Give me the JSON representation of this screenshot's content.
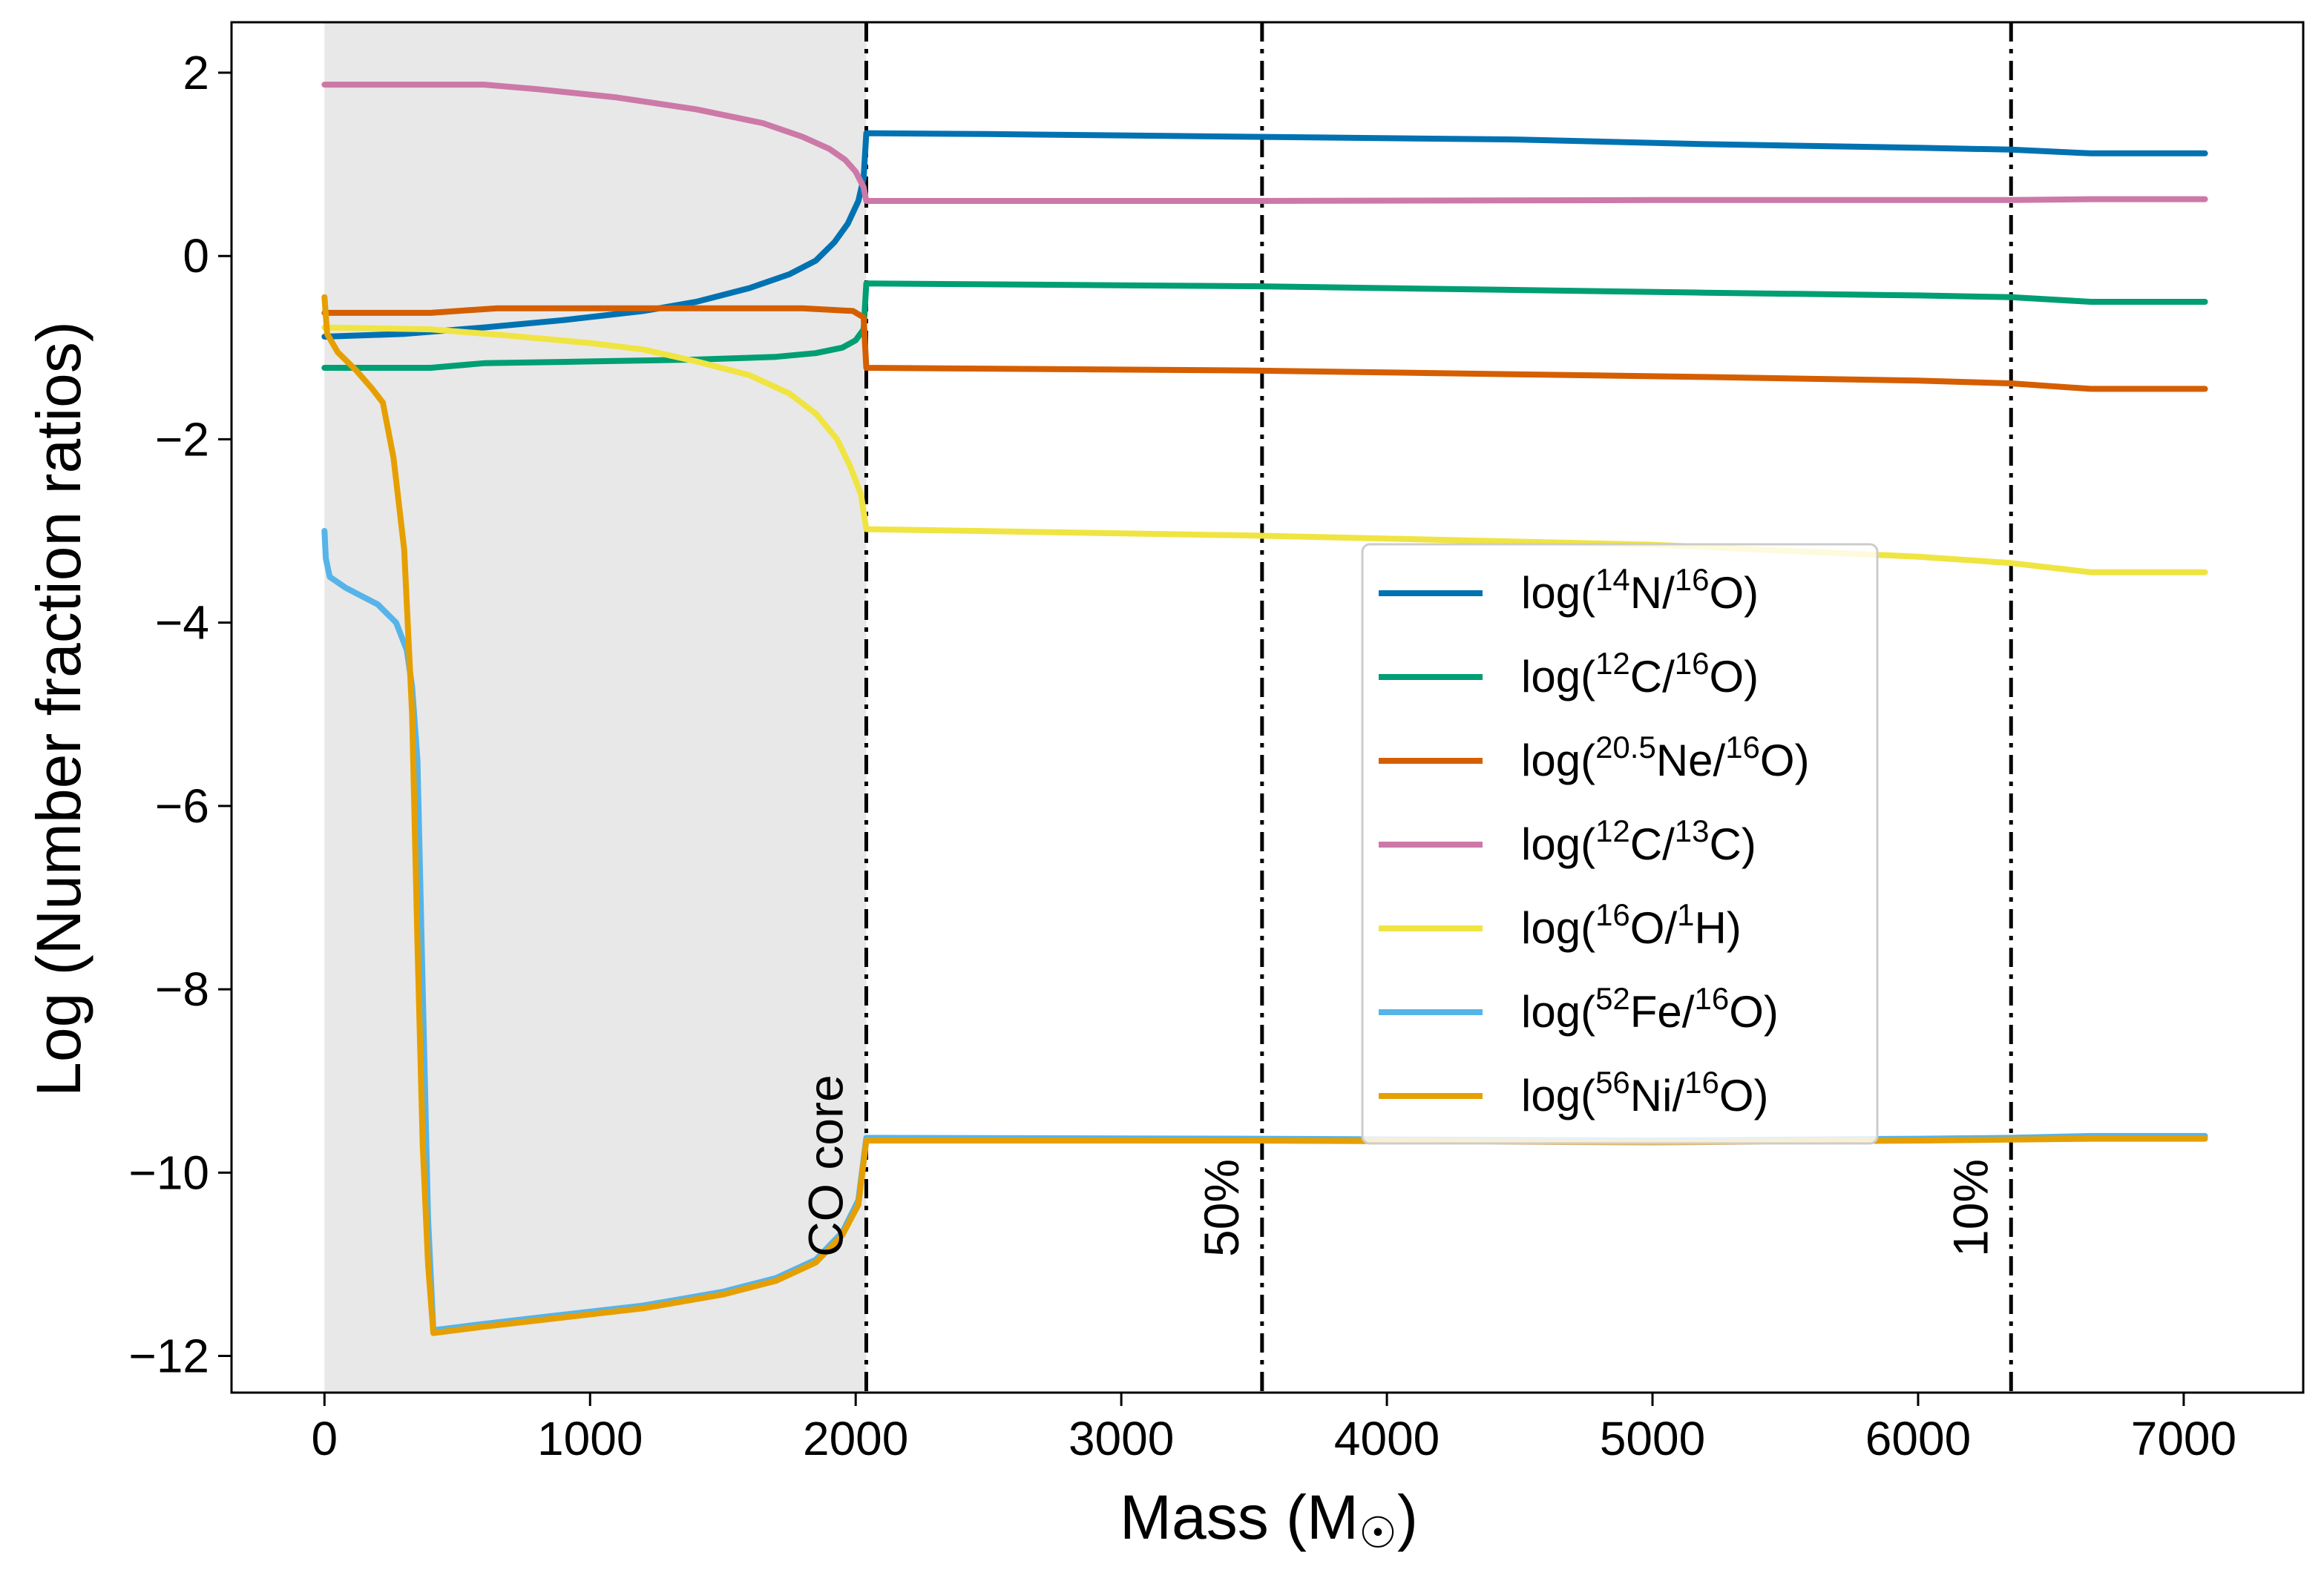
{
  "chart_data": {
    "type": "line",
    "xlabel": "Mass (M",
    "xlabel_sub": "☉",
    "xlabel_end": ")",
    "ylabel": "Log (Number fraction ratios)",
    "xlim": [
      -350,
      7450
    ],
    "ylim": [
      -12.4,
      2.55
    ],
    "xticks": [
      0,
      1000,
      2000,
      3000,
      4000,
      5000,
      6000,
      7000
    ],
    "yticks": [
      2,
      0,
      -2,
      -4,
      -6,
      -8,
      -10,
      -12
    ],
    "xtick_labels": [
      "0",
      "1000",
      "2000",
      "3000",
      "4000",
      "5000",
      "6000",
      "7000"
    ],
    "ytick_labels": [
      "2",
      "0",
      "−2",
      "−4",
      "−6",
      "−8",
      "−10",
      "−12"
    ],
    "shaded_region": [
      0,
      2040
    ],
    "vlines": [
      {
        "x": 2040,
        "label": "CO core"
      },
      {
        "x": 3530,
        "label": "50%"
      },
      {
        "x": 6350,
        "label": "10%"
      }
    ],
    "legend_position": "center-right",
    "series": [
      {
        "name": "14N/16O",
        "pre": "log(",
        "sup1": "14",
        "el1": "N/",
        "sup2": "16",
        "el2": "O)",
        "color": "#0072B2",
        "points": [
          [
            0,
            -0.88
          ],
          [
            300,
            -0.85
          ],
          [
            600,
            -0.78
          ],
          [
            900,
            -0.7
          ],
          [
            1200,
            -0.6
          ],
          [
            1400,
            -0.5
          ],
          [
            1600,
            -0.35
          ],
          [
            1750,
            -0.2
          ],
          [
            1850,
            -0.05
          ],
          [
            1920,
            0.15
          ],
          [
            1970,
            0.35
          ],
          [
            2010,
            0.6
          ],
          [
            2030,
            0.85
          ],
          [
            2040,
            1.34
          ],
          [
            2500,
            1.33
          ],
          [
            3500,
            1.3
          ],
          [
            4500,
            1.27
          ],
          [
            5200,
            1.22
          ],
          [
            6000,
            1.18
          ],
          [
            6350,
            1.16
          ],
          [
            6650,
            1.12
          ],
          [
            7080,
            1.12
          ]
        ]
      },
      {
        "name": "12C/16O",
        "pre": "log(",
        "sup1": "12",
        "el1": "C/",
        "sup2": "16",
        "el2": "O)",
        "color": "#009E73",
        "points": [
          [
            0,
            -1.22
          ],
          [
            400,
            -1.22
          ],
          [
            600,
            -1.17
          ],
          [
            1000,
            -1.15
          ],
          [
            1400,
            -1.13
          ],
          [
            1700,
            -1.1
          ],
          [
            1850,
            -1.06
          ],
          [
            1950,
            -1.0
          ],
          [
            2000,
            -0.92
          ],
          [
            2030,
            -0.8
          ],
          [
            2040,
            -0.3
          ],
          [
            3500,
            -0.33
          ],
          [
            5200,
            -0.4
          ],
          [
            6000,
            -0.43
          ],
          [
            6350,
            -0.45
          ],
          [
            6650,
            -0.5
          ],
          [
            7080,
            -0.5
          ]
        ]
      },
      {
        "name": "20.5Ne/16O",
        "pre": "log(",
        "sup1": "20.5",
        "el1": "Ne/",
        "sup2": "16",
        "el2": "O)",
        "color": "#D55E00",
        "points": [
          [
            0,
            -0.62
          ],
          [
            400,
            -0.62
          ],
          [
            650,
            -0.57
          ],
          [
            1200,
            -0.57
          ],
          [
            1800,
            -0.57
          ],
          [
            1990,
            -0.6
          ],
          [
            2030,
            -0.67
          ],
          [
            2040,
            -1.22
          ],
          [
            3500,
            -1.25
          ],
          [
            5200,
            -1.32
          ],
          [
            6000,
            -1.36
          ],
          [
            6350,
            -1.39
          ],
          [
            6650,
            -1.45
          ],
          [
            7080,
            -1.45
          ]
        ]
      },
      {
        "name": "12C/13C",
        "pre": "log(",
        "sup1": "12",
        "el1": "C/",
        "sup2": "13",
        "el2": "C)",
        "color": "#CC79A7",
        "points": [
          [
            0,
            1.87
          ],
          [
            400,
            1.87
          ],
          [
            600,
            1.87
          ],
          [
            800,
            1.82
          ],
          [
            1100,
            1.73
          ],
          [
            1400,
            1.6
          ],
          [
            1650,
            1.45
          ],
          [
            1800,
            1.3
          ],
          [
            1900,
            1.17
          ],
          [
            1960,
            1.05
          ],
          [
            2000,
            0.92
          ],
          [
            2030,
            0.75
          ],
          [
            2040,
            0.6
          ],
          [
            3500,
            0.6
          ],
          [
            5000,
            0.61
          ],
          [
            6350,
            0.61
          ],
          [
            6650,
            0.62
          ],
          [
            7080,
            0.62
          ]
        ]
      },
      {
        "name": "16O/1H",
        "pre": "log(",
        "sup1": "16",
        "el1": "O/",
        "sup2": "1",
        "el2": "H)",
        "color": "#F0E442",
        "points": [
          [
            0,
            -0.78
          ],
          [
            400,
            -0.8
          ],
          [
            700,
            -0.87
          ],
          [
            1000,
            -0.95
          ],
          [
            1200,
            -1.02
          ],
          [
            1400,
            -1.15
          ],
          [
            1600,
            -1.3
          ],
          [
            1750,
            -1.5
          ],
          [
            1850,
            -1.72
          ],
          [
            1930,
            -2.0
          ],
          [
            1980,
            -2.3
          ],
          [
            2020,
            -2.6
          ],
          [
            2040,
            -2.98
          ],
          [
            3500,
            -3.05
          ],
          [
            5000,
            -3.15
          ],
          [
            6000,
            -3.28
          ],
          [
            6350,
            -3.35
          ],
          [
            6650,
            -3.45
          ],
          [
            7080,
            -3.45
          ]
        ]
      },
      {
        "name": "52Fe/16O",
        "pre": "log(",
        "sup1": "52",
        "el1": "Fe/",
        "sup2": "16",
        "el2": "O)",
        "color": "#56B4E9",
        "points": [
          [
            0,
            -3.0
          ],
          [
            5,
            -3.3
          ],
          [
            20,
            -3.5
          ],
          [
            80,
            -3.62
          ],
          [
            200,
            -3.8
          ],
          [
            270,
            -4.0
          ],
          [
            310,
            -4.3
          ],
          [
            330,
            -4.7
          ],
          [
            350,
            -5.5
          ],
          [
            370,
            -8.0
          ],
          [
            390,
            -10.5
          ],
          [
            410,
            -11.72
          ],
          [
            600,
            -11.65
          ],
          [
            900,
            -11.55
          ],
          [
            1200,
            -11.45
          ],
          [
            1500,
            -11.3
          ],
          [
            1700,
            -11.15
          ],
          [
            1850,
            -10.95
          ],
          [
            1950,
            -10.65
          ],
          [
            2010,
            -10.3
          ],
          [
            2040,
            -9.62
          ],
          [
            3500,
            -9.63
          ],
          [
            5000,
            -9.65
          ],
          [
            6000,
            -9.63
          ],
          [
            6350,
            -9.62
          ],
          [
            6650,
            -9.6
          ],
          [
            7080,
            -9.6
          ]
        ]
      },
      {
        "name": "56Ni/16O",
        "pre": "log(",
        "sup1": "56",
        "el1": "Ni/",
        "sup2": "16",
        "el2": "O)",
        "color": "#E69F00",
        "points": [
          [
            0,
            -0.45
          ],
          [
            10,
            -0.85
          ],
          [
            50,
            -1.05
          ],
          [
            120,
            -1.25
          ],
          [
            180,
            -1.45
          ],
          [
            220,
            -1.6
          ],
          [
            260,
            -2.2
          ],
          [
            300,
            -3.2
          ],
          [
            330,
            -5.0
          ],
          [
            350,
            -7.5
          ],
          [
            370,
            -9.7
          ],
          [
            390,
            -11.0
          ],
          [
            410,
            -11.75
          ],
          [
            600,
            -11.68
          ],
          [
            900,
            -11.58
          ],
          [
            1200,
            -11.48
          ],
          [
            1500,
            -11.33
          ],
          [
            1700,
            -11.18
          ],
          [
            1850,
            -10.98
          ],
          [
            1950,
            -10.68
          ],
          [
            2010,
            -10.35
          ],
          [
            2040,
            -9.65
          ],
          [
            3500,
            -9.65
          ],
          [
            5000,
            -9.67
          ],
          [
            6000,
            -9.65
          ],
          [
            6350,
            -9.64
          ],
          [
            6650,
            -9.63
          ],
          [
            7080,
            -9.63
          ]
        ]
      }
    ]
  }
}
